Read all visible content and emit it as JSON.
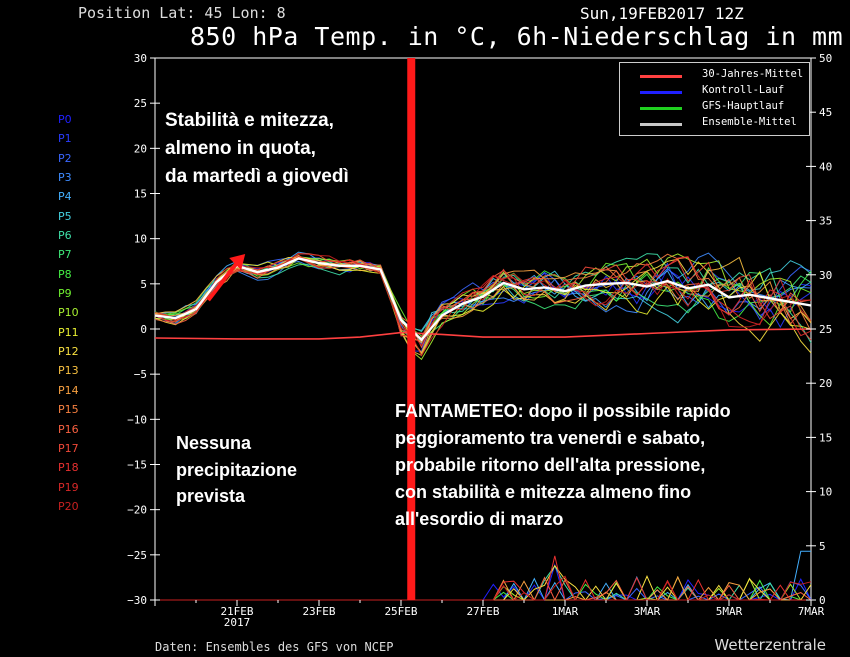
{
  "header": {
    "position": "Position  Lat: 45 Lon: 8",
    "date": "Sun,19FEB2017 12Z",
    "title": "850 hPa Temp. in °C, 6h-Niederschlag in mm"
  },
  "footer": "Daten: Ensembles des GFS von NCEP",
  "brand": "Wetterzentrale",
  "annotations": {
    "top_left": [
      "Stabilità e mitezza,",
      "almeno in quota,",
      "da martedì a giovedì"
    ],
    "bottom_left": [
      "Nessuna",
      "precipitazione",
      "prevista"
    ],
    "bottom_right": [
      "FANTAMETEO: dopo il possibile rapido",
      "peggioramento tra venerdì e sabato,",
      "probabile ritorno dell'alta pressione,",
      "con stabilità e mitezza almeno fino",
      "all'esordio di marzo"
    ]
  },
  "members": [
    "P0",
    "P1",
    "P2",
    "P3",
    "P4",
    "P5",
    "P6",
    "P7",
    "P8",
    "P9",
    "P10",
    "P11",
    "P12",
    "P13",
    "P14",
    "P15",
    "P16",
    "P17",
    "P18",
    "P19",
    "P20"
  ],
  "member_colors": [
    "#2020ff",
    "#2a3cff",
    "#3a66ff",
    "#3f8cff",
    "#44b0ff",
    "#44d0e0",
    "#3ee0a8",
    "#3ee878",
    "#44ee44",
    "#70f030",
    "#a8f030",
    "#e8f030",
    "#f8e040",
    "#f8c040",
    "#f8a040",
    "#f88040",
    "#f86040",
    "#f04838",
    "#e83030",
    "#d82828",
    "#c82020"
  ],
  "legend": [
    {
      "label": "30-Jahres-Mittel",
      "color": "#ff4040"
    },
    {
      "label": "Kontroll-Lauf",
      "color": "#2020ff"
    },
    {
      "label": "GFS-Hauptlauf",
      "color": "#20d020"
    },
    {
      "label": "Ensemble-Mittel",
      "color": "#c8c8c8"
    }
  ],
  "chart_data": {
    "type": "line",
    "x_ticks": [
      "21FEB\n2017",
      "23FEB",
      "25FEB",
      "27FEB",
      "1MAR",
      "3MAR",
      "5MAR",
      "7MAR"
    ],
    "x_tick_days": [
      2,
      4,
      6,
      8,
      10,
      12,
      14,
      16
    ],
    "x_range_days": [
      0,
      16
    ],
    "y_left": {
      "label": "850 hPa Temp. (°C)",
      "range": [
        -30,
        30
      ],
      "ticks": [
        -30,
        -25,
        -20,
        -15,
        -10,
        -5,
        0,
        5,
        10,
        15,
        20,
        25,
        30
      ]
    },
    "y_right": {
      "label": "6h-Niederschlag (mm)",
      "range": [
        0,
        50
      ],
      "ticks": [
        0,
        5,
        10,
        15,
        20,
        25,
        30,
        35,
        40,
        45,
        50
      ]
    },
    "marker_day": 6.25,
    "arrow_days": [
      1.3,
      2.2
    ],
    "arrow_temps": [
      3.2,
      8.3
    ],
    "series": [
      {
        "name": "30-Jahres-Mittel",
        "color": "#ff4040",
        "width": 1.6,
        "days": [
          0,
          2,
          4,
          5,
          6,
          7,
          8,
          10,
          12,
          14,
          16
        ],
        "values": [
          -1,
          -1.1,
          -1.1,
          -0.9,
          -0.4,
          -0.6,
          -0.9,
          -0.9,
          -0.5,
          -0.1,
          0
        ]
      },
      {
        "name": "Ensemble-Mittel",
        "color": "#ffffff",
        "width": 2.4,
        "days": [
          0,
          0.5,
          1,
          1.5,
          2,
          2.5,
          3,
          3.5,
          4,
          4.5,
          5,
          5.5,
          6,
          6.5,
          7,
          7.5,
          8,
          8.5,
          9,
          9.5,
          10,
          10.5,
          11,
          11.5,
          12,
          12.5,
          13,
          13.5,
          14,
          14.5,
          15,
          15.5,
          16
        ],
        "values": [
          1.5,
          1.2,
          2.2,
          5.2,
          7,
          6.3,
          6.8,
          7.8,
          7.3,
          7,
          7,
          6.6,
          1,
          -1.2,
          1.5,
          2.8,
          3.6,
          5.1,
          4.4,
          4.6,
          4.2,
          4.8,
          5,
          5.1,
          4.7,
          5.3,
          4.5,
          4.9,
          3.5,
          3.8,
          3.4,
          3,
          2.6
        ]
      }
    ]
  }
}
